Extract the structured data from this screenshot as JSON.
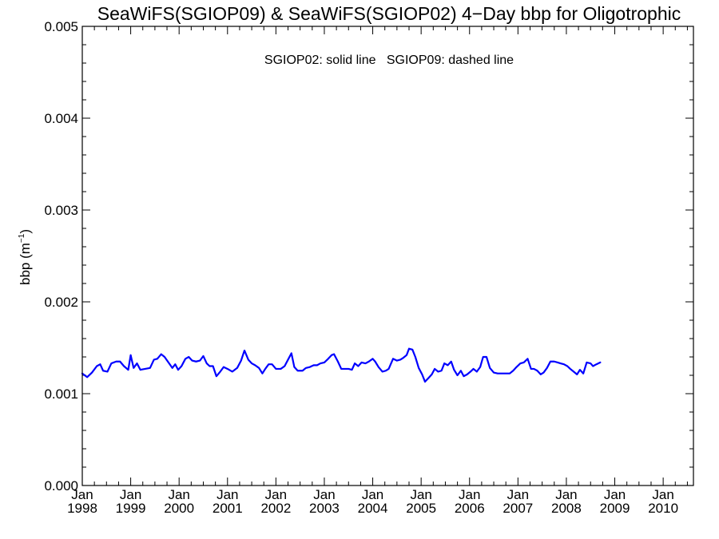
{
  "chart_data": {
    "type": "line",
    "title": "SeaWiFS(SGIOP09) & SeaWiFS(SGIOP02) 4−Day bbp for Oligotrophic",
    "annotation": "SGIOP02: solid line   SGIOP09: dashed line",
    "ylabel": {
      "prefix": "bbp (m",
      "superscript": "−1",
      "suffix": ")"
    },
    "xlim": [
      1998.0,
      2010.625
    ],
    "ylim": [
      0.0,
      0.005
    ],
    "y_ticks": [
      {
        "value": 0.0,
        "label": "0.000"
      },
      {
        "value": 0.001,
        "label": "0.001"
      },
      {
        "value": 0.002,
        "label": "0.002"
      },
      {
        "value": 0.003,
        "label": "0.003"
      },
      {
        "value": 0.004,
        "label": "0.004"
      },
      {
        "value": 0.005,
        "label": "0.005"
      }
    ],
    "x_ticks": [
      {
        "value": 1998,
        "month": "Jan",
        "year": "1998"
      },
      {
        "value": 1999,
        "month": "Jan",
        "year": "1999"
      },
      {
        "value": 2000,
        "month": "Jan",
        "year": "2000"
      },
      {
        "value": 2001,
        "month": "Jan",
        "year": "2001"
      },
      {
        "value": 2002,
        "month": "Jan",
        "year": "2002"
      },
      {
        "value": 2003,
        "month": "Jan",
        "year": "2003"
      },
      {
        "value": 2004,
        "month": "Jan",
        "year": "2004"
      },
      {
        "value": 2005,
        "month": "Jan",
        "year": "2005"
      },
      {
        "value": 2006,
        "month": "Jan",
        "year": "2006"
      },
      {
        "value": 2007,
        "month": "Jan",
        "year": "2007"
      },
      {
        "value": 2008,
        "month": "Jan",
        "year": "2008"
      },
      {
        "value": 2009,
        "month": "Jan",
        "year": "2009"
      },
      {
        "value": 2010,
        "month": "Jan",
        "year": "2010"
      }
    ],
    "grid": false,
    "series": [
      {
        "color": "#0000ff",
        "style": "solid",
        "points": [
          [
            1998.0,
            0.00122
          ],
          [
            1998.1,
            0.00118
          ],
          [
            1998.2,
            0.00123
          ],
          [
            1998.3,
            0.0013
          ],
          [
            1998.37,
            0.00132
          ],
          [
            1998.43,
            0.00125
          ],
          [
            1998.52,
            0.00124
          ],
          [
            1998.6,
            0.00133
          ],
          [
            1998.7,
            0.00135
          ],
          [
            1998.78,
            0.00135
          ],
          [
            1998.86,
            0.0013
          ],
          [
            1998.95,
            0.00126
          ],
          [
            1999.0,
            0.00142
          ],
          [
            1999.06,
            0.00128
          ],
          [
            1999.13,
            0.00133
          ],
          [
            1999.2,
            0.00126
          ],
          [
            1999.3,
            0.00127
          ],
          [
            1999.4,
            0.00128
          ],
          [
            1999.48,
            0.00137
          ],
          [
            1999.55,
            0.00138
          ],
          [
            1999.63,
            0.00143
          ],
          [
            1999.7,
            0.0014
          ],
          [
            1999.78,
            0.00134
          ],
          [
            1999.86,
            0.00128
          ],
          [
            1999.92,
            0.00132
          ],
          [
            1999.98,
            0.00126
          ],
          [
            2000.05,
            0.0013
          ],
          [
            2000.13,
            0.00138
          ],
          [
            2000.2,
            0.0014
          ],
          [
            2000.27,
            0.00136
          ],
          [
            2000.35,
            0.00135
          ],
          [
            2000.43,
            0.00136
          ],
          [
            2000.5,
            0.00141
          ],
          [
            2000.57,
            0.00133
          ],
          [
            2000.63,
            0.0013
          ],
          [
            2000.7,
            0.0013
          ],
          [
            2000.77,
            0.00119
          ],
          [
            2000.85,
            0.00124
          ],
          [
            2000.92,
            0.00129
          ],
          [
            2001.0,
            0.00127
          ],
          [
            2001.1,
            0.00124
          ],
          [
            2001.2,
            0.00128
          ],
          [
            2001.28,
            0.00136
          ],
          [
            2001.35,
            0.00147
          ],
          [
            2001.43,
            0.00137
          ],
          [
            2001.5,
            0.00133
          ],
          [
            2001.57,
            0.00131
          ],
          [
            2001.65,
            0.00128
          ],
          [
            2001.72,
            0.00122
          ],
          [
            2001.78,
            0.00127
          ],
          [
            2001.85,
            0.00132
          ],
          [
            2001.92,
            0.00132
          ],
          [
            2002.0,
            0.00127
          ],
          [
            2002.1,
            0.00127
          ],
          [
            2002.18,
            0.0013
          ],
          [
            2002.25,
            0.00137
          ],
          [
            2002.32,
            0.00144
          ],
          [
            2002.38,
            0.00129
          ],
          [
            2002.45,
            0.00125
          ],
          [
            2002.55,
            0.00125
          ],
          [
            2002.62,
            0.00128
          ],
          [
            2002.7,
            0.00129
          ],
          [
            2002.78,
            0.00131
          ],
          [
            2002.85,
            0.00131
          ],
          [
            2002.92,
            0.00133
          ],
          [
            2003.0,
            0.00134
          ],
          [
            2003.08,
            0.00138
          ],
          [
            2003.15,
            0.00142
          ],
          [
            2003.2,
            0.00143
          ],
          [
            2003.28,
            0.00135
          ],
          [
            2003.35,
            0.00127
          ],
          [
            2003.43,
            0.00127
          ],
          [
            2003.5,
            0.00127
          ],
          [
            2003.57,
            0.00126
          ],
          [
            2003.63,
            0.00133
          ],
          [
            2003.7,
            0.0013
          ],
          [
            2003.77,
            0.00134
          ],
          [
            2003.85,
            0.00133
          ],
          [
            2003.92,
            0.00135
          ],
          [
            2004.0,
            0.00138
          ],
          [
            2004.05,
            0.00135
          ],
          [
            2004.12,
            0.00129
          ],
          [
            2004.2,
            0.00124
          ],
          [
            2004.27,
            0.00125
          ],
          [
            2004.33,
            0.00127
          ],
          [
            2004.42,
            0.00138
          ],
          [
            2004.5,
            0.00136
          ],
          [
            2004.57,
            0.00137
          ],
          [
            2004.63,
            0.00139
          ],
          [
            2004.7,
            0.00142
          ],
          [
            2004.75,
            0.00149
          ],
          [
            2004.82,
            0.00148
          ],
          [
            2004.88,
            0.0014
          ],
          [
            2004.95,
            0.00128
          ],
          [
            2005.02,
            0.00121
          ],
          [
            2005.08,
            0.00113
          ],
          [
            2005.15,
            0.00117
          ],
          [
            2005.22,
            0.00121
          ],
          [
            2005.28,
            0.00127
          ],
          [
            2005.35,
            0.00124
          ],
          [
            2005.42,
            0.00125
          ],
          [
            2005.48,
            0.00133
          ],
          [
            2005.55,
            0.00131
          ],
          [
            2005.62,
            0.00135
          ],
          [
            2005.68,
            0.00126
          ],
          [
            2005.75,
            0.0012
          ],
          [
            2005.82,
            0.00125
          ],
          [
            2005.88,
            0.00119
          ],
          [
            2005.95,
            0.00121
          ],
          [
            2006.02,
            0.00124
          ],
          [
            2006.08,
            0.00127
          ],
          [
            2006.15,
            0.00124
          ],
          [
            2006.22,
            0.00129
          ],
          [
            2006.28,
            0.0014
          ],
          [
            2006.35,
            0.0014
          ],
          [
            2006.42,
            0.00128
          ],
          [
            2006.5,
            0.00123
          ],
          [
            2006.58,
            0.00122
          ],
          [
            2006.67,
            0.00122
          ],
          [
            2006.75,
            0.00122
          ],
          [
            2006.83,
            0.00122
          ],
          [
            2006.9,
            0.00125
          ],
          [
            2006.97,
            0.00129
          ],
          [
            2007.05,
            0.00133
          ],
          [
            2007.12,
            0.00134
          ],
          [
            2007.2,
            0.00138
          ],
          [
            2007.27,
            0.00127
          ],
          [
            2007.33,
            0.00127
          ],
          [
            2007.4,
            0.00125
          ],
          [
            2007.47,
            0.00121
          ],
          [
            2007.53,
            0.00123
          ],
          [
            2007.6,
            0.00128
          ],
          [
            2007.67,
            0.00135
          ],
          [
            2007.75,
            0.00135
          ],
          [
            2007.82,
            0.00134
          ],
          [
            2007.88,
            0.00133
          ],
          [
            2007.95,
            0.00132
          ],
          [
            2008.02,
            0.0013
          ],
          [
            2008.08,
            0.00127
          ],
          [
            2008.15,
            0.00124
          ],
          [
            2008.22,
            0.00121
          ],
          [
            2008.28,
            0.00126
          ],
          [
            2008.35,
            0.00122
          ],
          [
            2008.42,
            0.00134
          ],
          [
            2008.5,
            0.00133
          ],
          [
            2008.55,
            0.0013
          ],
          [
            2008.62,
            0.00132
          ],
          [
            2008.7,
            0.00134
          ]
        ]
      }
    ]
  }
}
